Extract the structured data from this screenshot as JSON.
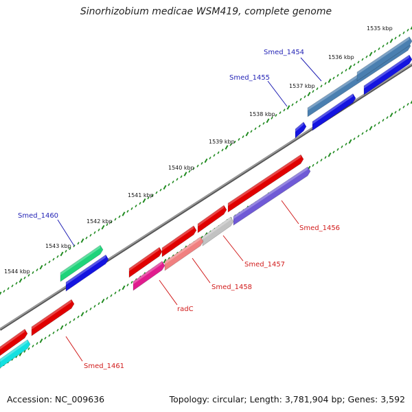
{
  "title": "Sinorhizobium medicae WSM419, complete genome",
  "accession": "Accession: NC_009636",
  "summary": "Topology: circular; Length: 3,781,904 bp; Genes: 3,592",
  "colors": {
    "backbone": "#7f7f7f",
    "tick": "#1f8a1f",
    "label_top": "#1f1fb4",
    "label_bottom": "#d11a1a"
  },
  "kbp_labels": [
    "1535 kbp",
    "1536 kbp",
    "1537 kbp",
    "1538 kbp",
    "1539 kbp",
    "1540 kbp",
    "1541 kbp",
    "1542 kbp",
    "1543 kbp",
    "1544 kbp"
  ],
  "gene_labels": [
    {
      "name": "Smed_1454",
      "strand": "top"
    },
    {
      "name": "Smed_1455",
      "strand": "top"
    },
    {
      "name": "Smed_1460",
      "strand": "top"
    },
    {
      "name": "Smed_1456",
      "strand": "bottom"
    },
    {
      "name": "Smed_1457",
      "strand": "bottom"
    },
    {
      "name": "Smed_1458",
      "strand": "bottom"
    },
    {
      "name": "radC",
      "strand": "bottom"
    },
    {
      "name": "Smed_1461",
      "strand": "bottom"
    }
  ]
}
